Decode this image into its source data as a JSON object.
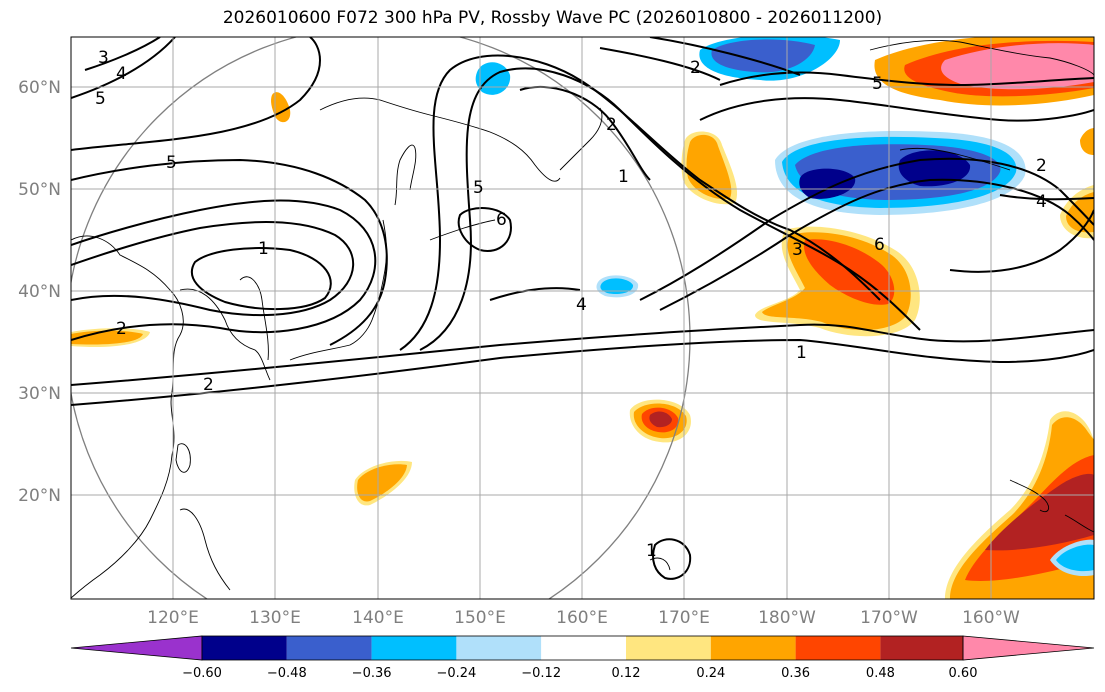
{
  "title": "2026010600 F072 300 hPa PV, Rossby Wave PC (2026010800 - 2026011200)",
  "lat_labels": [
    "60°N",
    "50°N",
    "40°N",
    "30°N",
    "20°N"
  ],
  "lon_labels": [
    "120°E",
    "130°E",
    "140°E",
    "150°E",
    "160°E",
    "170°E",
    "180°W",
    "170°W",
    "160°W"
  ],
  "colorbar": {
    "tick_labels": [
      "−0.60",
      "−0.48",
      "−0.36",
      "−0.24",
      "−0.12",
      "0.12",
      "0.24",
      "0.36",
      "0.48",
      "0.60"
    ],
    "colors": [
      "#9a32cd",
      "#00008b",
      "#3a5fcd",
      "#00bfff",
      "#b0e0fa",
      "#ffffff",
      "#ffe680",
      "#ffa500",
      "#ff4500",
      "#b22222",
      "#ff88aa"
    ]
  },
  "contour_labels": [
    "3",
    "4",
    "5",
    "5",
    "1",
    "2",
    "2",
    "5",
    "6",
    "4",
    "1",
    "2",
    "2",
    "3",
    "6",
    "1",
    "2",
    "4",
    "1",
    "5"
  ]
}
